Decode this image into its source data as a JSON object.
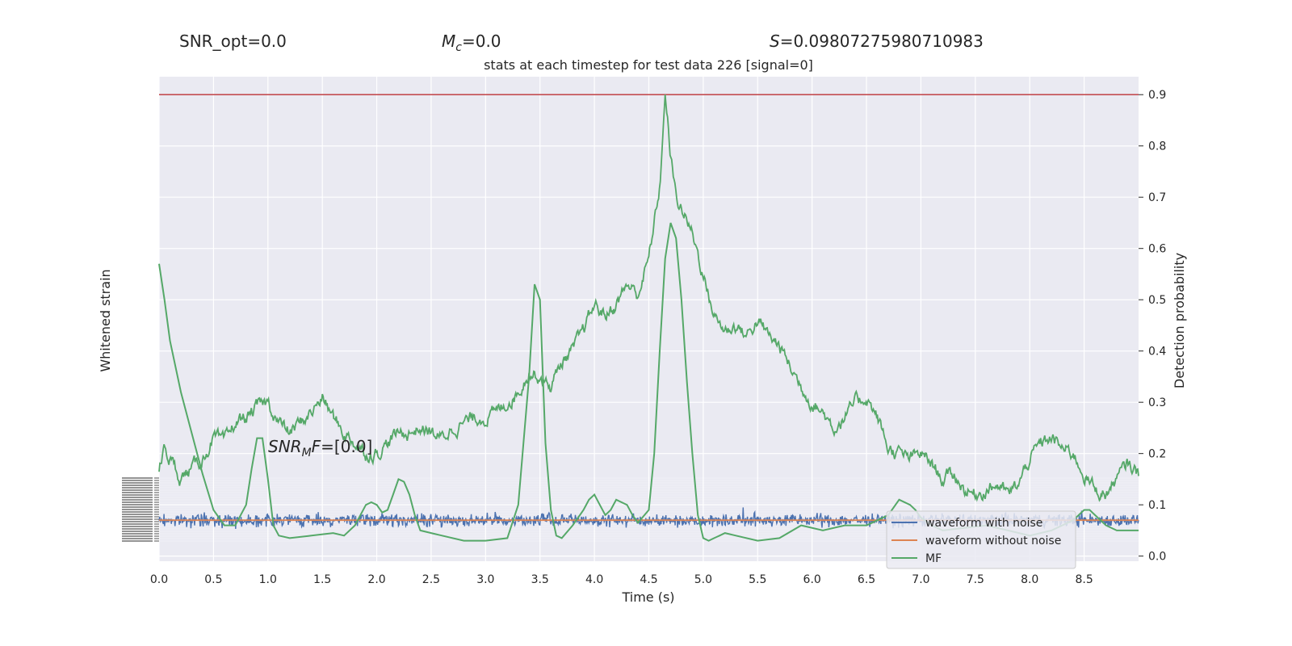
{
  "header": {
    "snr_opt": "SNR_opt=0.0",
    "mc_symbol": "M",
    "mc_sub": "c",
    "mc_value": "=0.0",
    "s_symbol": "S",
    "s_value": "=0.09807275980710983"
  },
  "annotation": {
    "snr_symbol": "SNR",
    "snr_sub": "M",
    "snr_mid": "F",
    "snr_value": "=[0.0]"
  },
  "chart_data": {
    "type": "line",
    "title": "stats at each timestep for test data 226 [signal=0]",
    "xlabel": "Time (s)",
    "ylabel_left": "Whitened strain",
    "ylabel_right": "Detection probability",
    "xlim": [
      0.0,
      9.0
    ],
    "ylim_right": [
      -0.01,
      0.935
    ],
    "x_ticks": [
      "0.0",
      "0.5",
      "1.0",
      "1.5",
      "2.0",
      "2.5",
      "3.0",
      "3.5",
      "4.0",
      "4.5",
      "5.0",
      "5.5",
      "6.0",
      "6.5",
      "7.0",
      "7.5",
      "8.0",
      "8.5"
    ],
    "y_ticks_right": [
      "0.0",
      "0.1",
      "0.2",
      "0.3",
      "0.4",
      "0.5",
      "0.6",
      "0.7",
      "0.8",
      "0.9"
    ],
    "threshold": 0.9,
    "grid": true,
    "legend_position": "lower-right",
    "colors": {
      "background": "#eaeaf2",
      "noise": "#4c72b0",
      "clean": "#dd8452",
      "mf": "#55a868",
      "prob": "#55a868",
      "threshold": "#c44e52"
    },
    "series": [
      {
        "name": "waveform with noise",
        "type": "noise",
        "mean": 0.07,
        "amplitude": 0.018
      },
      {
        "name": "waveform without noise",
        "type": "constant",
        "value": 0.07
      },
      {
        "name": "MF",
        "x": [
          0.0,
          0.05,
          0.1,
          0.2,
          0.3,
          0.4,
          0.5,
          0.6,
          0.7,
          0.8,
          0.85,
          0.9,
          0.95,
          1.0,
          1.05,
          1.1,
          1.2,
          1.4,
          1.6,
          1.7,
          1.8,
          1.9,
          1.95,
          2.0,
          2.05,
          2.1,
          2.15,
          2.2,
          2.25,
          2.3,
          2.35,
          2.4,
          2.5,
          2.6,
          2.8,
          3.0,
          3.2,
          3.3,
          3.4,
          3.45,
          3.5,
          3.55,
          3.6,
          3.65,
          3.7,
          3.8,
          3.9,
          3.95,
          4.0,
          4.05,
          4.1,
          4.15,
          4.2,
          4.3,
          4.35,
          4.4,
          4.5,
          4.55,
          4.6,
          4.65,
          4.7,
          4.75,
          4.8,
          4.85,
          4.9,
          4.95,
          5.0,
          5.05,
          5.1,
          5.15,
          5.2,
          5.3,
          5.5,
          5.7,
          5.9,
          6.1,
          6.3,
          6.5,
          6.7,
          6.8,
          6.9,
          6.95,
          7.0,
          7.1,
          7.2,
          7.4,
          7.6,
          7.8,
          8.0,
          8.2,
          8.4,
          8.5,
          8.55,
          8.6,
          8.7,
          8.8,
          9.0
        ],
        "values": [
          0.57,
          0.5,
          0.42,
          0.32,
          0.24,
          0.16,
          0.09,
          0.06,
          0.06,
          0.1,
          0.17,
          0.23,
          0.23,
          0.15,
          0.06,
          0.04,
          0.035,
          0.04,
          0.045,
          0.04,
          0.06,
          0.1,
          0.105,
          0.1,
          0.085,
          0.09,
          0.12,
          0.15,
          0.145,
          0.12,
          0.08,
          0.05,
          0.045,
          0.04,
          0.03,
          0.03,
          0.035,
          0.1,
          0.35,
          0.53,
          0.5,
          0.22,
          0.09,
          0.04,
          0.035,
          0.06,
          0.09,
          0.11,
          0.12,
          0.1,
          0.08,
          0.09,
          0.11,
          0.1,
          0.08,
          0.065,
          0.09,
          0.2,
          0.4,
          0.58,
          0.65,
          0.62,
          0.5,
          0.34,
          0.2,
          0.08,
          0.035,
          0.03,
          0.035,
          0.04,
          0.045,
          0.04,
          0.03,
          0.035,
          0.06,
          0.05,
          0.06,
          0.06,
          0.08,
          0.11,
          0.1,
          0.09,
          0.075,
          0.06,
          0.05,
          0.055,
          0.06,
          0.05,
          0.04,
          0.05,
          0.07,
          0.09,
          0.09,
          0.08,
          0.06,
          0.05,
          0.05
        ]
      },
      {
        "name": "Detection probability",
        "type": "probability",
        "x": [
          0.0,
          0.05,
          0.1,
          0.2,
          0.3,
          0.4,
          0.5,
          0.6,
          0.7,
          0.8,
          0.9,
          1.0,
          1.1,
          1.2,
          1.3,
          1.4,
          1.5,
          1.6,
          1.7,
          1.8,
          1.9,
          2.0,
          2.1,
          2.2,
          2.3,
          2.4,
          2.5,
          2.6,
          2.7,
          2.8,
          2.9,
          3.0,
          3.1,
          3.2,
          3.3,
          3.4,
          3.5,
          3.6,
          3.7,
          3.8,
          3.9,
          4.0,
          4.1,
          4.2,
          4.3,
          4.4,
          4.5,
          4.55,
          4.6,
          4.65,
          4.7,
          4.75,
          4.8,
          4.9,
          5.0,
          5.1,
          5.2,
          5.3,
          5.4,
          5.5,
          5.6,
          5.7,
          5.8,
          5.9,
          6.0,
          6.1,
          6.2,
          6.3,
          6.4,
          6.5,
          6.6,
          6.7,
          6.8,
          6.9,
          7.0,
          7.1,
          7.2,
          7.3,
          7.4,
          7.5,
          7.6,
          7.7,
          7.8,
          7.9,
          8.0,
          8.1,
          8.2,
          8.3,
          8.4,
          8.5,
          8.6,
          8.7,
          8.8,
          8.9,
          9.0
        ],
        "values": [
          0.17,
          0.21,
          0.19,
          0.15,
          0.17,
          0.19,
          0.23,
          0.22,
          0.26,
          0.27,
          0.29,
          0.3,
          0.26,
          0.24,
          0.26,
          0.28,
          0.31,
          0.27,
          0.24,
          0.22,
          0.2,
          0.2,
          0.22,
          0.24,
          0.24,
          0.25,
          0.24,
          0.23,
          0.25,
          0.26,
          0.27,
          0.27,
          0.28,
          0.3,
          0.32,
          0.36,
          0.35,
          0.33,
          0.38,
          0.4,
          0.44,
          0.49,
          0.47,
          0.49,
          0.53,
          0.51,
          0.58,
          0.65,
          0.72,
          0.9,
          0.78,
          0.7,
          0.68,
          0.63,
          0.55,
          0.47,
          0.44,
          0.45,
          0.43,
          0.46,
          0.43,
          0.41,
          0.37,
          0.33,
          0.3,
          0.28,
          0.25,
          0.27,
          0.3,
          0.31,
          0.27,
          0.21,
          0.2,
          0.19,
          0.2,
          0.18,
          0.15,
          0.16,
          0.13,
          0.12,
          0.13,
          0.14,
          0.12,
          0.14,
          0.19,
          0.22,
          0.23,
          0.21,
          0.2,
          0.16,
          0.13,
          0.12,
          0.15,
          0.18,
          0.16
        ]
      }
    ]
  }
}
